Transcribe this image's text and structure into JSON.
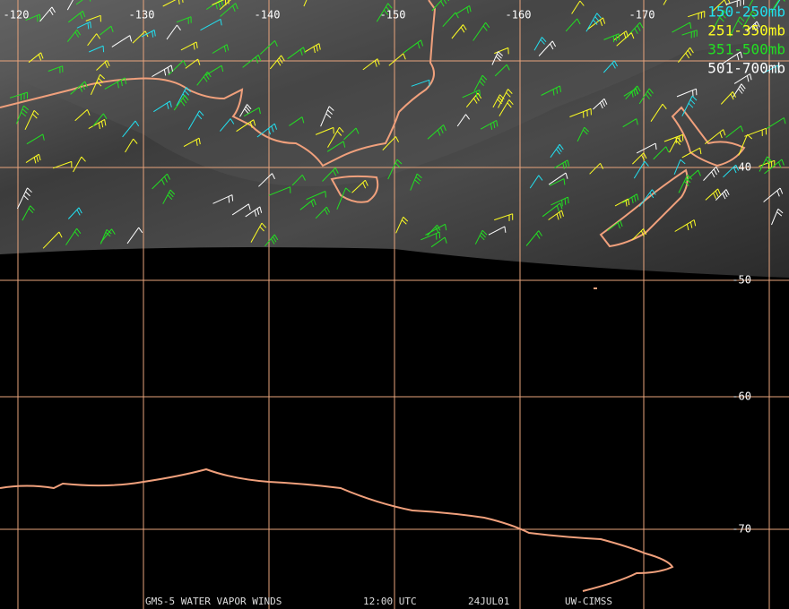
{
  "map": {
    "longitude_labels": [
      "-120",
      "-130",
      "-140",
      "-150",
      "-160",
      "-170"
    ],
    "latitude_labels": [
      "-40",
      "-50",
      "-60",
      "-70"
    ],
    "legend": [
      {
        "label": "150-250mb",
        "color": "#22e0f0"
      },
      {
        "label": "251-350mb",
        "color": "#ffff22"
      },
      {
        "label": "351-500mb",
        "color": "#22e022"
      },
      {
        "label": "501-700mb",
        "color": "#ffffff"
      }
    ],
    "footer": [
      "GMS-5 WATER VAPOR WINDS",
      "12:00 UTC",
      "24JUL01",
      "UW-CIMSS"
    ]
  }
}
